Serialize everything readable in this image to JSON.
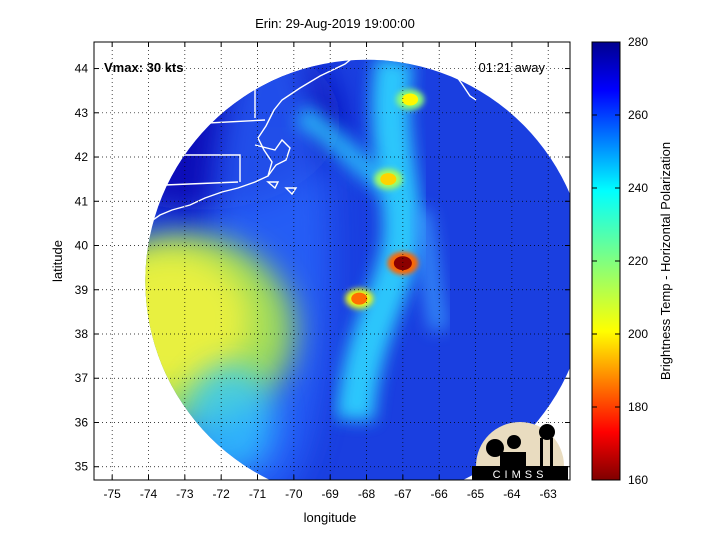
{
  "chart_data": {
    "type": "heatmap",
    "title": "Erin: 29-Aug-2019 19:00:00",
    "xlabel": "longitude",
    "ylabel": "latitude",
    "xlim": [
      -75.5,
      -62.4
    ],
    "ylim": [
      34.7,
      44.6
    ],
    "x_ticks": [
      -75,
      -74,
      -73,
      -72,
      -71,
      -70,
      -69,
      -68,
      -67,
      -66,
      -65,
      -64,
      -63
    ],
    "y_ticks": [
      35,
      36,
      37,
      38,
      39,
      40,
      41,
      42,
      43,
      44
    ],
    "grid": true,
    "annotations": {
      "vmax": "Vmax: 30 kts",
      "time_offset": "01:21 away"
    },
    "colorbar": {
      "label": "Brightness Temp - Horizontal Polarization",
      "range": [
        160,
        280
      ],
      "ticks": [
        160,
        180,
        200,
        220,
        240,
        260,
        280
      ],
      "colormap": "jet"
    },
    "swath_center": [
      -68.0,
      39.2
    ],
    "swath_radius_deg_lat": 5.0,
    "features": [
      {
        "name": "coastal-cold-region",
        "lon": -72.8,
        "lat": 38.8,
        "tb": 212
      },
      {
        "name": "storm-core",
        "lon": -67.0,
        "lat": 39.6,
        "tb": 165
      },
      {
        "name": "rainband-north",
        "lon": -67.4,
        "lat": 41.5,
        "tb": 196
      },
      {
        "name": "cell-1",
        "lon": -68.2,
        "lat": 38.8,
        "tb": 185
      },
      {
        "name": "cell-2",
        "lon": -66.8,
        "lat": 43.3,
        "tb": 200
      }
    ]
  },
  "logo": {
    "text": "CIMSS"
  }
}
